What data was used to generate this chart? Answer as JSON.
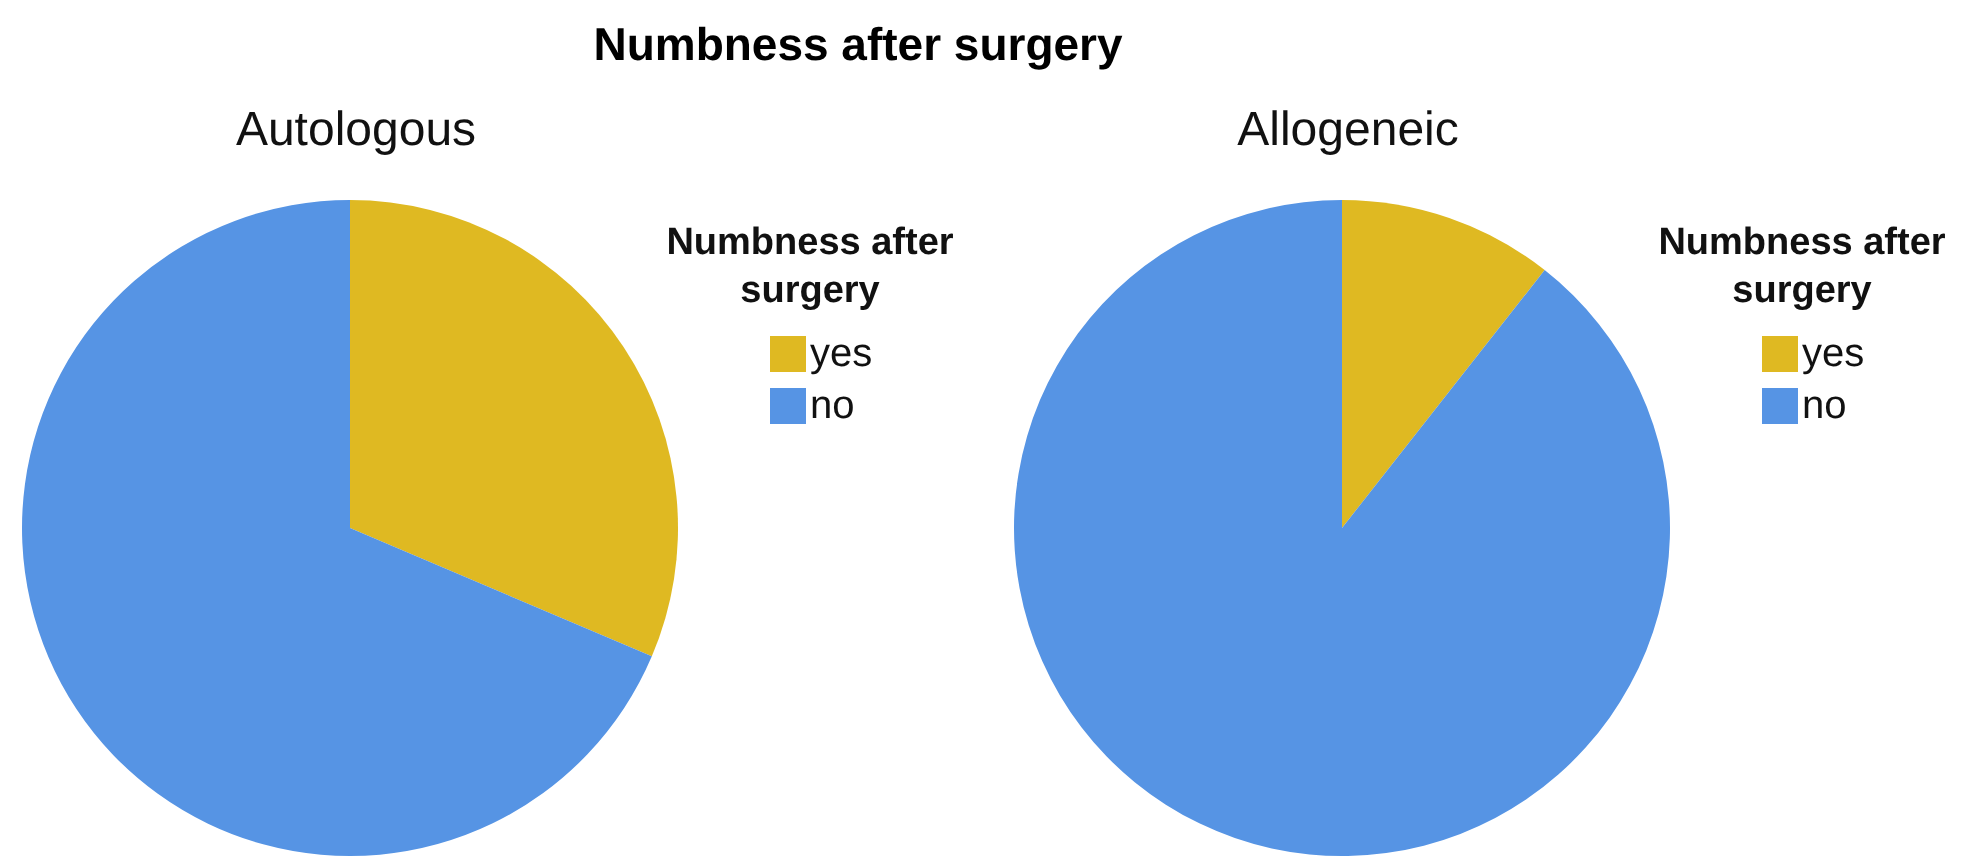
{
  "chart_data": [
    {
      "type": "pie",
      "title": "Numbness after surgery",
      "subtitle": "Autologous",
      "legend_title": "Numbness after surgery",
      "categories": [
        "yes",
        "no"
      ],
      "values": [
        31.4,
        68.6
      ],
      "colors": [
        "#dfb922",
        "#5694e4"
      ],
      "legend": "right"
    },
    {
      "type": "pie",
      "subtitle": "Allogeneic",
      "legend_title": "Numbness after surgery",
      "categories": [
        "yes",
        "no"
      ],
      "values": [
        10.6,
        89.4
      ],
      "colors": [
        "#dfb922",
        "#5694e4"
      ],
      "legend": "right"
    }
  ]
}
